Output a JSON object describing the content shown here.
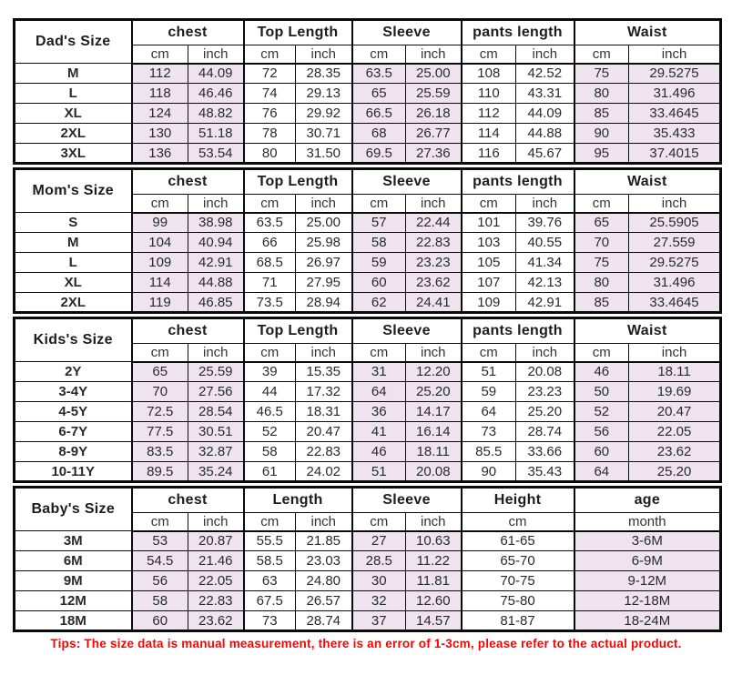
{
  "colors": {
    "shade": "#efe3ef",
    "tip": "#ff0000",
    "border": "#0a0a0a"
  },
  "tip": {
    "text": "Tips: The size data is manual measurement, there is an error of 1-3cm, please refer to the actual product."
  },
  "tables": [
    {
      "id": "dad",
      "title": "Dad's Size",
      "groups": [
        {
          "label": "chest",
          "units": [
            "cm",
            "inch"
          ],
          "shaded": true
        },
        {
          "label": "Top Length",
          "units": [
            "cm",
            "inch"
          ],
          "shaded": false
        },
        {
          "label": "Sleeve",
          "units": [
            "cm",
            "inch"
          ],
          "shaded": true
        },
        {
          "label": "pants length",
          "units": [
            "cm",
            "inch"
          ],
          "shaded": false
        },
        {
          "label": "Waist",
          "units": [
            "cm",
            "inch"
          ],
          "shaded": true
        }
      ],
      "rows": [
        {
          "size": "M",
          "values": [
            "112",
            "44.09",
            "72",
            "28.35",
            "63.5",
            "25.00",
            "108",
            "42.52",
            "75",
            "29.5275"
          ]
        },
        {
          "size": "L",
          "values": [
            "118",
            "46.46",
            "74",
            "29.13",
            "65",
            "25.59",
            "110",
            "43.31",
            "80",
            "31.496"
          ]
        },
        {
          "size": "XL",
          "values": [
            "124",
            "48.82",
            "76",
            "29.92",
            "66.5",
            "26.18",
            "112",
            "44.09",
            "85",
            "33.4645"
          ]
        },
        {
          "size": "2XL",
          "values": [
            "130",
            "51.18",
            "78",
            "30.71",
            "68",
            "26.77",
            "114",
            "44.88",
            "90",
            "35.433"
          ]
        },
        {
          "size": "3XL",
          "values": [
            "136",
            "53.54",
            "80",
            "31.50",
            "69.5",
            "27.36",
            "116",
            "45.67",
            "95",
            "37.4015"
          ]
        }
      ]
    },
    {
      "id": "mom",
      "title": "Mom's Size",
      "groups": [
        {
          "label": "chest",
          "units": [
            "cm",
            "inch"
          ],
          "shaded": true
        },
        {
          "label": "Top Length",
          "units": [
            "cm",
            "inch"
          ],
          "shaded": false
        },
        {
          "label": "Sleeve",
          "units": [
            "cm",
            "inch"
          ],
          "shaded": true
        },
        {
          "label": "pants length",
          "units": [
            "cm",
            "inch"
          ],
          "shaded": false
        },
        {
          "label": "Waist",
          "units": [
            "cm",
            "inch"
          ],
          "shaded": true
        }
      ],
      "rows": [
        {
          "size": "S",
          "values": [
            "99",
            "38.98",
            "63.5",
            "25.00",
            "57",
            "22.44",
            "101",
            "39.76",
            "65",
            "25.5905"
          ]
        },
        {
          "size": "M",
          "values": [
            "104",
            "40.94",
            "66",
            "25.98",
            "58",
            "22.83",
            "103",
            "40.55",
            "70",
            "27.559"
          ]
        },
        {
          "size": "L",
          "values": [
            "109",
            "42.91",
            "68.5",
            "26.97",
            "59",
            "23.23",
            "105",
            "41.34",
            "75",
            "29.5275"
          ]
        },
        {
          "size": "XL",
          "values": [
            "114",
            "44.88",
            "71",
            "27.95",
            "60",
            "23.62",
            "107",
            "42.13",
            "80",
            "31.496"
          ]
        },
        {
          "size": "2XL",
          "values": [
            "119",
            "46.85",
            "73.5",
            "28.94",
            "62",
            "24.41",
            "109",
            "42.91",
            "85",
            "33.4645"
          ]
        }
      ]
    },
    {
      "id": "kids",
      "title": "Kids's Size",
      "groups": [
        {
          "label": "chest",
          "units": [
            "cm",
            "inch"
          ],
          "shaded": true
        },
        {
          "label": "Top Length",
          "units": [
            "cm",
            "inch"
          ],
          "shaded": false
        },
        {
          "label": "Sleeve",
          "units": [
            "cm",
            "inch"
          ],
          "shaded": true
        },
        {
          "label": "pants length",
          "units": [
            "cm",
            "inch"
          ],
          "shaded": false
        },
        {
          "label": "Waist",
          "units": [
            "cm",
            "inch"
          ],
          "shaded": true
        }
      ],
      "rows": [
        {
          "size": "2Y",
          "values": [
            "65",
            "25.59",
            "39",
            "15.35",
            "31",
            "12.20",
            "51",
            "20.08",
            "46",
            "18.11"
          ]
        },
        {
          "size": "3-4Y",
          "values": [
            "70",
            "27.56",
            "44",
            "17.32",
            "64",
            "25.20",
            "59",
            "23.23",
            "50",
            "19.69"
          ]
        },
        {
          "size": "4-5Y",
          "values": [
            "72.5",
            "28.54",
            "46.5",
            "18.31",
            "36",
            "14.17",
            "64",
            "25.20",
            "52",
            "20.47"
          ]
        },
        {
          "size": "6-7Y",
          "values": [
            "77.5",
            "30.51",
            "52",
            "20.47",
            "41",
            "16.14",
            "73",
            "28.74",
            "56",
            "22.05"
          ]
        },
        {
          "size": "8-9Y",
          "values": [
            "83.5",
            "32.87",
            "58",
            "22.83",
            "46",
            "18.11",
            "85.5",
            "33.66",
            "60",
            "23.62"
          ]
        },
        {
          "size": "10-11Y",
          "values": [
            "89.5",
            "35.24",
            "61",
            "24.02",
            "51",
            "20.08",
            "90",
            "35.43",
            "64",
            "25.20"
          ]
        }
      ]
    },
    {
      "id": "baby",
      "title": "Baby's Size",
      "groups": [
        {
          "label": "chest",
          "units": [
            "cm",
            "inch"
          ],
          "shaded": true
        },
        {
          "label": "Length",
          "units": [
            "cm",
            "inch"
          ],
          "shaded": false
        },
        {
          "label": "Sleeve",
          "units": [
            "cm",
            "inch"
          ],
          "shaded": true
        },
        {
          "label": "Height",
          "units": [
            "cm"
          ],
          "cols": 2,
          "shaded": false
        },
        {
          "label": "age",
          "units": [
            "month"
          ],
          "cols": 2,
          "shaded": true
        }
      ],
      "rows": [
        {
          "size": "3M",
          "values": [
            "53",
            "20.87",
            "55.5",
            "21.85",
            "27",
            "10.63",
            "61-65",
            "3-6M"
          ]
        },
        {
          "size": "6M",
          "values": [
            "54.5",
            "21.46",
            "58.5",
            "23.03",
            "28.5",
            "11.22",
            "65-70",
            "6-9M"
          ]
        },
        {
          "size": "9M",
          "values": [
            "56",
            "22.05",
            "63",
            "24.80",
            "30",
            "11.81",
            "70-75",
            "9-12M"
          ]
        },
        {
          "size": "12M",
          "values": [
            "58",
            "22.83",
            "67.5",
            "26.57",
            "32",
            "12.60",
            "75-80",
            "12-18M"
          ]
        },
        {
          "size": "18M",
          "values": [
            "60",
            "23.62",
            "73",
            "28.74",
            "37",
            "14.57",
            "81-87",
            "18-24M"
          ]
        }
      ]
    }
  ]
}
